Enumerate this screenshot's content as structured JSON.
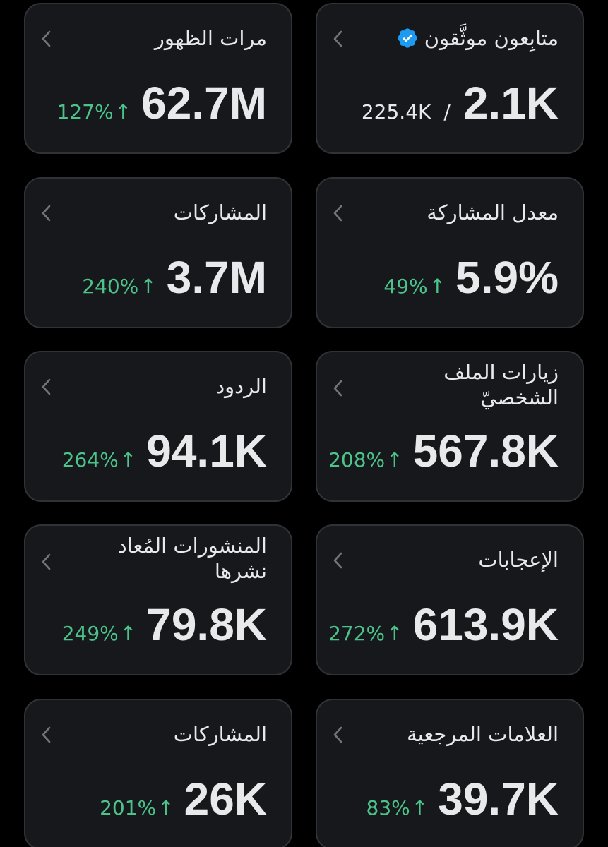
{
  "colors": {
    "background": "#000000",
    "card": "#16181c",
    "border": "#2f3336",
    "text": "#e7e9ea",
    "muted": "#71767b",
    "positive": "#4cc38a",
    "verified": "#1d9bf0"
  },
  "cards": {
    "verified_followers": {
      "title": "متابِعون موثَّقون",
      "value": "2.1K",
      "separator": "/",
      "secondary": "225.4K",
      "icon": "verified-badge-icon"
    },
    "impressions": {
      "title": "مرات الظهور",
      "value": "62.7M",
      "change": "127%",
      "arrow": "↑"
    },
    "engagement_rate": {
      "title": "معدل المشاركة",
      "value": "5.9%",
      "change": "49%",
      "arrow": "↑"
    },
    "engagements": {
      "title": "المشاركات",
      "value": "3.7M",
      "change": "240%",
      "arrow": "↑"
    },
    "profile_visits": {
      "title": "زيارات الملف الشخصيّ",
      "value": "567.8K",
      "change": "208%",
      "arrow": "↑"
    },
    "replies": {
      "title": "الردود",
      "value": "94.1K",
      "change": "264%",
      "arrow": "↑"
    },
    "likes": {
      "title": "الإعجابات",
      "value": "613.9K",
      "change": "272%",
      "arrow": "↑"
    },
    "reposts": {
      "title": "المنشورات المُعاد نشرها",
      "value": "79.8K",
      "change": "249%",
      "arrow": "↑"
    },
    "bookmarks": {
      "title": "العلامات المرجعية",
      "value": "39.7K",
      "change": "83%",
      "arrow": "↑"
    },
    "shares": {
      "title": "المشاركات",
      "value": "26K",
      "change": "201%",
      "arrow": "↑"
    }
  }
}
